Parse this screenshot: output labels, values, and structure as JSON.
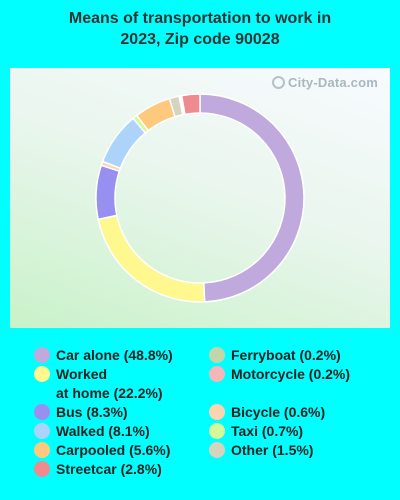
{
  "chart_data": {
    "type": "pie",
    "donut": true,
    "title": "Means of transportation to work in\n2023, Zip code 90028",
    "watermark": "City-Data.com",
    "slices": [
      {
        "label": "Car alone (48.8%)",
        "value": 48.8,
        "color": "#c0a9dc"
      },
      {
        "label": "Worked\nat home (22.2%)",
        "value": 22.2,
        "color": "#fef88f"
      },
      {
        "label": "Bus (8.3%)",
        "value": 8.3,
        "color": "#9890f0"
      },
      {
        "label": "Bicycle (0.6%)",
        "value": 0.6,
        "color": "#fdd4b0"
      },
      {
        "label": "Walked (8.1%)",
        "value": 8.1,
        "color": "#acd4fb"
      },
      {
        "label": "Taxi (0.7%)",
        "value": 0.7,
        "color": "#d5f99a"
      },
      {
        "label": "Carpooled (5.6%)",
        "value": 5.6,
        "color": "#fec97d"
      },
      {
        "label": "Other (1.5%)",
        "value": 1.5,
        "color": "#d6d3be"
      },
      {
        "label": "Ferryboat (0.2%)",
        "value": 0.2,
        "color": "#c3d6a9"
      },
      {
        "label": "Motorcycle (0.2%)",
        "value": 0.2,
        "color": "#f4b7b7"
      },
      {
        "label": "Streetcar (2.8%)",
        "value": 2.8,
        "color": "#ef8a8f"
      }
    ],
    "legend_position": "bottom"
  }
}
